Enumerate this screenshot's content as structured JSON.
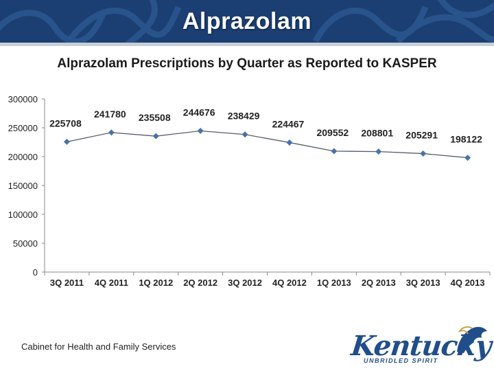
{
  "slide": {
    "title": "Alprazolam"
  },
  "footer": {
    "text": "Cabinet for Health and Family Services"
  },
  "logo": {
    "wordmark": "Kentucky",
    "tagline": "UNBRIDLED SPIRIT"
  },
  "colors": {
    "banner": "#1b3f73",
    "series": "#4a72a8",
    "axis": "#888888"
  },
  "chart_data": {
    "type": "line",
    "title": "Alprazolam Prescriptions by Quarter as Reported to KASPER",
    "categories": [
      "3Q 2011",
      "4Q 2011",
      "1Q 2012",
      "2Q 2012",
      "3Q 2012",
      "4Q 2012",
      "1Q 2013",
      "2Q 2013",
      "3Q 2013",
      "4Q 2013"
    ],
    "series": [
      {
        "name": "Alprazolam",
        "values": [
          225708,
          241780,
          235508,
          244676,
          238429,
          224467,
          209552,
          208801,
          205291,
          198122
        ]
      }
    ],
    "yticks": [
      0,
      50000,
      100000,
      150000,
      200000,
      250000,
      300000
    ],
    "ylim": [
      0,
      300000
    ],
    "xlabel": "",
    "ylabel": "",
    "grid": false,
    "data_labels": true
  }
}
